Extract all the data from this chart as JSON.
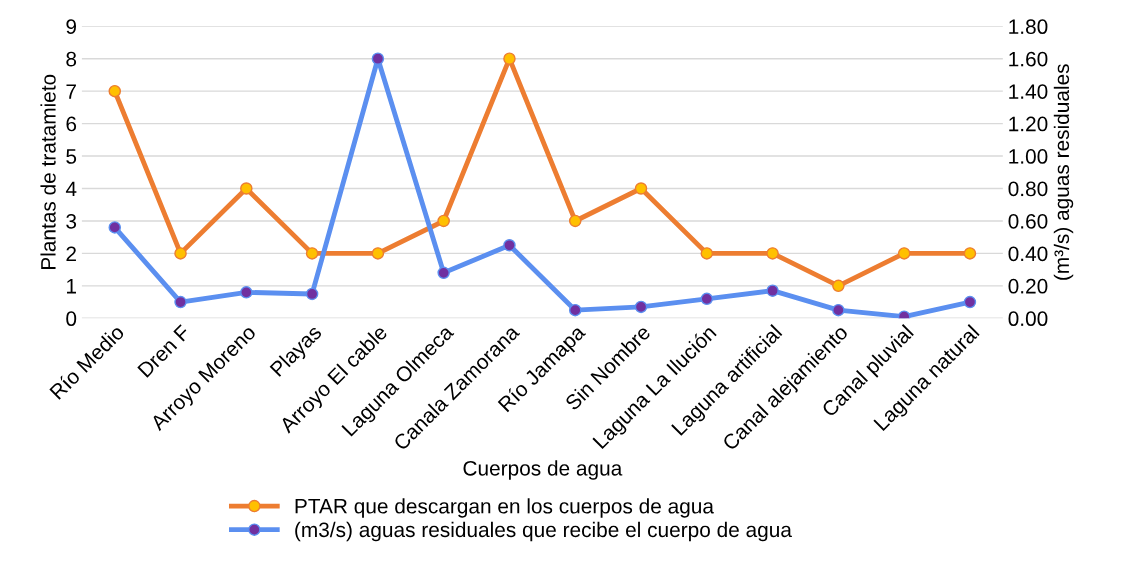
{
  "chart_data": {
    "type": "line",
    "xlabel": "Cuerpos de agua",
    "ylabel": "Plantas de tratamieto",
    "y2label": "(m³/s) aguas residuales",
    "categories": [
      "Río Medio",
      "Dren F",
      "Arroyo Moreno",
      "Playas",
      "Arroyo El cable",
      "Laguna Olmeca",
      "Canala Zamorana",
      "Río Jamapa",
      "Sin Nombre",
      "Laguna La Ilución",
      "Laguna artificial",
      "Canal alejamiento",
      "Canal pluvial",
      "Laguna natural"
    ],
    "series": [
      {
        "name": "PTAR que descargan en los cuerpos de agua",
        "color": "#ed7d31",
        "values": [
          7,
          2,
          4,
          2,
          2,
          3,
          8,
          3,
          4,
          2,
          2,
          1,
          2,
          2
        ]
      },
      {
        "name": "(m3/s) aguas residuales que recibe el cuerpo de agua",
        "color": "#5b8ff0",
        "axis": "y2",
        "values": [
          0.56,
          0.1,
          0.16,
          0.15,
          1.6,
          0.28,
          0.45,
          0.05,
          0.07,
          0.12,
          0.17,
          0.05,
          0.01,
          0.1
        ]
      }
    ],
    "ylim": [
      0,
      9
    ],
    "yticks": [
      0,
      1,
      2,
      3,
      4,
      5,
      6,
      7,
      8,
      9
    ],
    "y2lim": [
      0,
      1.8
    ],
    "y2ticks": [
      {
        "value": 0,
        "label": "0.00"
      },
      {
        "value": 0.2,
        "label": "0.20"
      },
      {
        "value": 0.4,
        "label": "0.40"
      },
      {
        "value": 0.6,
        "label": "0.60"
      },
      {
        "value": 0.8,
        "label": "0.80"
      },
      {
        "value": 1.0,
        "label": "1.00"
      },
      {
        "value": 1.2,
        "label": "1.20"
      },
      {
        "value": 1.4,
        "label": "1.40"
      },
      {
        "value": 1.6,
        "label": "1.60"
      },
      {
        "value": 1.8,
        "label": "1.80"
      }
    ],
    "grid": "y",
    "legend": "bottom",
    "marker": "circle",
    "line_style": "solid"
  }
}
